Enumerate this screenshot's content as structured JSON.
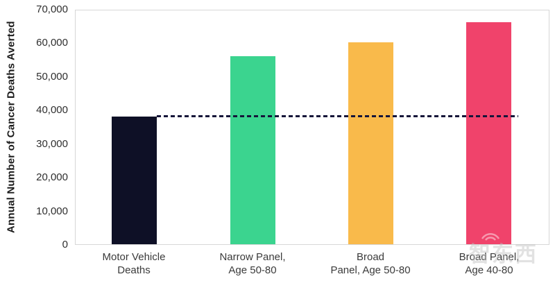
{
  "chart_data": {
    "type": "bar",
    "title": "",
    "xlabel": "",
    "ylabel": "Annual Number of Cancer Deaths Averted",
    "ylim": [
      0,
      70000
    ],
    "ytick_interval": 10000,
    "yticks": [
      "70,000",
      "60,000",
      "50,000",
      "40,000",
      "30,000",
      "20,000",
      "10,000",
      "0"
    ],
    "categories": [
      [
        "Motor Vehicle",
        "Deaths"
      ],
      [
        "Narrow Panel,",
        "Age 50-80"
      ],
      [
        "Broad",
        "Panel, Age 50-80"
      ],
      [
        "Broad Panel,",
        "Age 40-80"
      ]
    ],
    "values": [
      38000,
      56000,
      60000,
      66000
    ],
    "bar_colors": [
      "#0e1026",
      "#3bd48f",
      "#f9ba4b",
      "#f0436b"
    ],
    "reference_line": {
      "value": 38000,
      "style": "dashed",
      "color": "#15153a"
    },
    "grid": false,
    "legend": "none",
    "plot_border_color": "#d7d7d7"
  },
  "watermark": {
    "text": "智东西",
    "icon": "wifi-icon"
  }
}
